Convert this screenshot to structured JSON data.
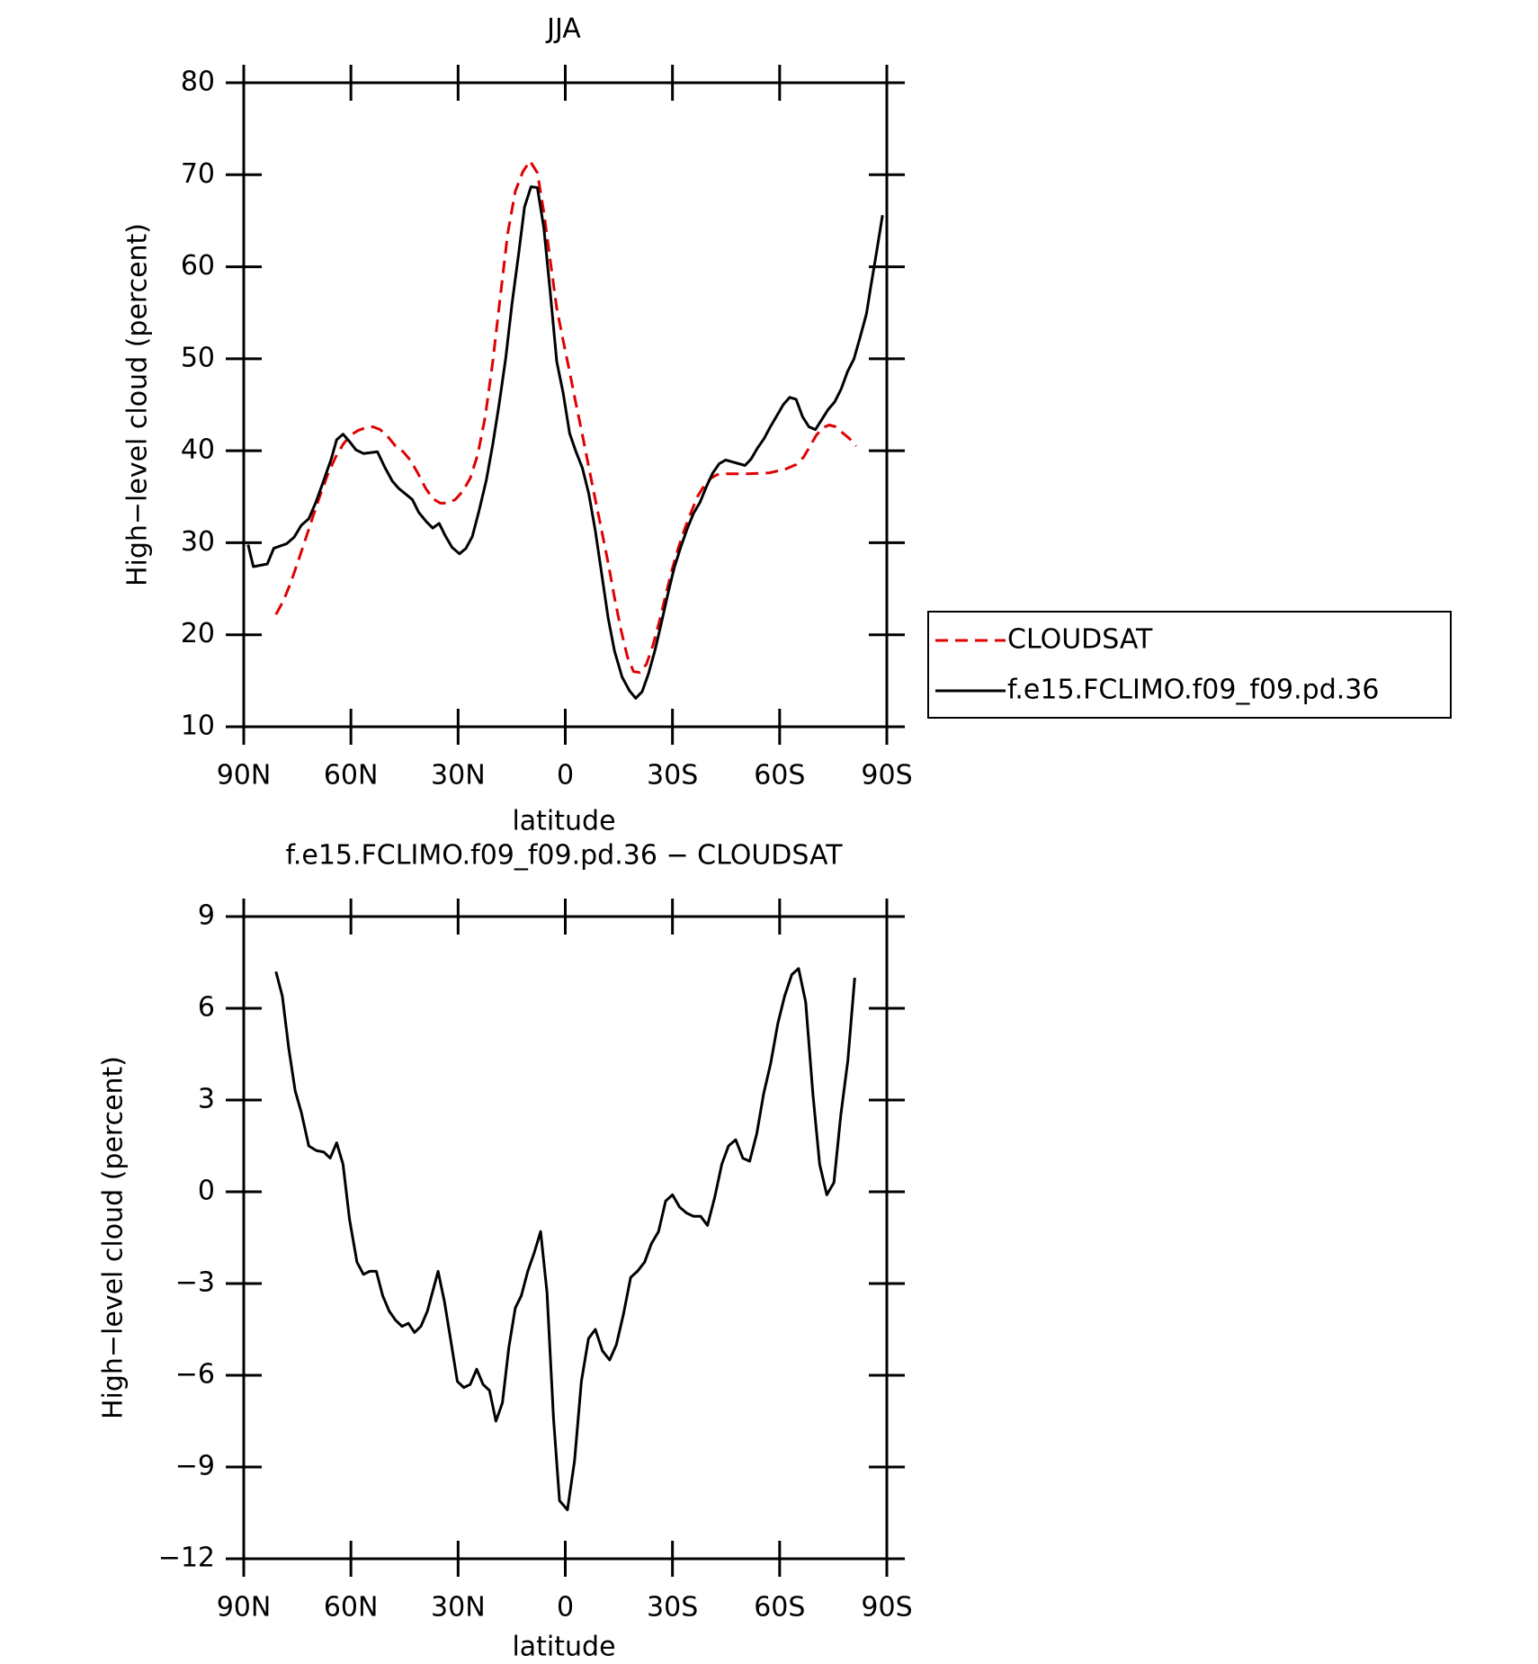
{
  "chart_data": [
    {
      "type": "line",
      "title": "JJA",
      "xlabel": "latitude",
      "ylabel": "High−level cloud (percent)",
      "xlim": [
        90,
        -90
      ],
      "xticks": [
        {
          "value": 90,
          "label": "90N"
        },
        {
          "value": 60,
          "label": "60N"
        },
        {
          "value": 30,
          "label": "30N"
        },
        0,
        {
          "value": -30,
          "label": "30S"
        },
        {
          "value": -60,
          "label": "60S"
        },
        {
          "value": -90,
          "label": "90S"
        }
      ],
      "ylim": [
        10,
        80
      ],
      "yticks": [
        10,
        20,
        30,
        40,
        50,
        60,
        70,
        80
      ],
      "legend": "right",
      "series": [
        {
          "name": "CLOUDSAT",
          "color": "#e00000",
          "line_style": "dashed",
          "x": [
            81.0,
            78.9,
            76.8,
            74.7,
            72.7,
            70.6,
            68.5,
            66.4,
            64.3,
            62.2,
            60.1,
            58.0,
            55.9,
            53.8,
            51.8,
            49.6,
            47.5,
            45.4,
            43.4,
            41.3,
            39.2,
            37.1,
            35.0,
            32.9,
            30.8,
            28.7,
            26.6,
            24.5,
            22.4,
            20.3,
            18.2,
            16.1,
            14.0,
            11.9,
            9.9,
            7.8,
            6.0,
            4.2,
            2.4,
            0.6,
            -1.2,
            -3.0,
            -4.8,
            -6.6,
            -8.4,
            -10.2,
            -12.0,
            -13.8,
            -15.6,
            -17.4,
            -19.1,
            -20.9,
            -22.7,
            -24.5,
            -26.3,
            -28.1,
            -29.9,
            -31.7,
            -33.5,
            -35.3,
            -37.1,
            -38.9,
            -40.7,
            -42.5,
            -45.2,
            -51.1,
            -57.1,
            -61.6,
            -64.6,
            -66.7,
            -68.5,
            -70.3,
            -72.1,
            -73.9,
            -75.7,
            -77.5,
            -79.6,
            -81.4
          ],
          "values": [
            22.2,
            23.7,
            25.7,
            28.1,
            30.4,
            32.9,
            35.3,
            37.5,
            39.3,
            40.7,
            41.7,
            42.2,
            42.5,
            42.6,
            42.3,
            41.5,
            40.5,
            39.9,
            39.0,
            37.6,
            36.0,
            34.8,
            34.3,
            34.3,
            34.7,
            35.6,
            37.0,
            39.6,
            43.7,
            49.7,
            56.7,
            63.6,
            68.2,
            70.3,
            71.5,
            70.2,
            65.9,
            60.7,
            55.5,
            52.0,
            48.6,
            45.1,
            41.7,
            38.2,
            34.7,
            31.3,
            27.8,
            24.0,
            20.5,
            17.6,
            16.0,
            15.9,
            16.8,
            18.8,
            21.4,
            24.3,
            27.1,
            29.5,
            31.6,
            33.4,
            35.1,
            36.2,
            37.0,
            37.4,
            37.5,
            37.5,
            37.6,
            38.0,
            38.5,
            39.3,
            40.5,
            41.7,
            42.5,
            42.8,
            42.6,
            42.0,
            41.3,
            40.5
          ]
        },
        {
          "name": "f.e15.FCLIMO.f09_f09.pd.36",
          "color": "#000000",
          "line_style": "solid",
          "x": [
            88.8,
            87.3,
            83.4,
            81.6,
            78.0,
            75.9,
            73.9,
            71.8,
            69.7,
            67.6,
            65.5,
            64.0,
            62.2,
            60.4,
            58.6,
            56.5,
            52.6,
            50.5,
            48.4,
            46.6,
            42.8,
            41.0,
            38.9,
            37.1,
            35.3,
            33.5,
            31.7,
            29.6,
            27.8,
            26.0,
            24.2,
            22.1,
            20.3,
            18.5,
            16.7,
            14.9,
            13.1,
            11.4,
            9.6,
            7.8,
            6.0,
            4.2,
            2.4,
            0.6,
            -1.2,
            -3.0,
            -4.8,
            -6.6,
            -8.4,
            -10.2,
            -12.0,
            -13.8,
            -15.9,
            -18.0,
            -19.7,
            -21.5,
            -23.3,
            -25.1,
            -26.9,
            -28.7,
            -30.5,
            -32.3,
            -34.1,
            -35.9,
            -37.7,
            -39.5,
            -41.3,
            -43.1,
            -44.9,
            -46.7,
            -50.3,
            -52.0,
            -53.8,
            -55.6,
            -57.4,
            -59.2,
            -61.0,
            -62.8,
            -64.6,
            -66.4,
            -68.2,
            -70.0,
            -71.8,
            -73.6,
            -75.4,
            -77.2,
            -79.0,
            -80.8,
            -82.5,
            -84.3,
            -85.5,
            -87.0,
            -88.8
          ],
          "values": [
            29.8,
            27.4,
            27.7,
            29.4,
            29.9,
            30.6,
            31.9,
            32.6,
            34.5,
            36.8,
            39.1,
            41.2,
            41.8,
            41.0,
            40.1,
            39.7,
            39.9,
            38.2,
            36.7,
            35.9,
            34.7,
            33.3,
            32.3,
            31.6,
            32.1,
            30.7,
            29.5,
            28.8,
            29.4,
            30.7,
            33.4,
            36.8,
            40.7,
            45.1,
            50.0,
            56.0,
            61.3,
            66.5,
            68.7,
            68.6,
            64.2,
            57.2,
            49.7,
            46.3,
            41.9,
            39.9,
            38.1,
            35.3,
            31.3,
            26.6,
            21.8,
            18.2,
            15.4,
            13.9,
            13.1,
            13.8,
            15.8,
            18.3,
            21.3,
            24.4,
            27.3,
            29.5,
            31.5,
            33.2,
            34.4,
            36.1,
            37.6,
            38.6,
            39.0,
            38.8,
            38.4,
            39.1,
            40.3,
            41.3,
            42.6,
            43.8,
            45.0,
            45.8,
            45.6,
            43.7,
            42.6,
            42.3,
            43.4,
            44.5,
            45.3,
            46.7,
            48.6,
            50.0,
            52.3,
            54.9,
            57.8,
            61.3,
            65.6
          ]
        }
      ]
    },
    {
      "type": "line",
      "title": "f.e15.FCLIMO.f09_f09.pd.36 − CLOUDSAT",
      "xlabel": "latitude",
      "ylabel": "High−level cloud (percent)",
      "xlim": [
        90,
        -90
      ],
      "xticks": [
        {
          "value": 90,
          "label": "90N"
        },
        {
          "value": 60,
          "label": "60N"
        },
        {
          "value": 30,
          "label": "30N"
        },
        0,
        {
          "value": -30,
          "label": "30S"
        },
        {
          "value": -60,
          "label": "60S"
        },
        {
          "value": -90,
          "label": "90S"
        }
      ],
      "ylim": [
        -12,
        9
      ],
      "yticks": [
        {
          "value": -12,
          "label": "−12"
        },
        {
          "value": -9,
          "label": "−9"
        },
        {
          "value": -6,
          "label": "−6"
        },
        {
          "value": -3,
          "label": "−3"
        },
        0,
        3,
        6,
        9
      ],
      "series": [
        {
          "color": "#000000",
          "line_style": "solid",
          "x": [
            81.0,
            79.2,
            77.4,
            75.6,
            73.9,
            71.8,
            69.7,
            67.6,
            65.8,
            64.0,
            62.2,
            60.4,
            58.3,
            56.5,
            54.7,
            52.9,
            51.1,
            49.3,
            47.5,
            45.7,
            43.9,
            42.2,
            40.4,
            38.6,
            35.6,
            33.8,
            32.0,
            30.2,
            28.4,
            26.6,
            24.8,
            23.0,
            21.2,
            19.4,
            17.6,
            15.8,
            14.0,
            12.3,
            10.5,
            8.7,
            6.9,
            5.1,
            3.3,
            1.6,
            -0.6,
            -2.6,
            -4.5,
            -6.5,
            -8.4,
            -10.4,
            -12.4,
            -14.3,
            -16.3,
            -18.3,
            -20.2,
            -22.2,
            -24.1,
            -26.1,
            -28.1,
            -30.0,
            -32.0,
            -34.0,
            -35.9,
            -37.9,
            -39.8,
            -41.8,
            -43.8,
            -45.7,
            -47.7,
            -49.7,
            -51.6,
            -53.6,
            -55.5,
            -57.5,
            -59.5,
            -61.4,
            -63.4,
            -65.3,
            -67.3,
            -69.3,
            -71.2,
            -73.2,
            -75.2,
            -77.1,
            -79.1,
            -81.0
          ],
          "values": [
            7.2,
            6.4,
            4.7,
            3.3,
            2.6,
            1.5,
            1.35,
            1.3,
            1.1,
            1.6,
            0.9,
            -0.9,
            -2.3,
            -2.7,
            -2.6,
            -2.6,
            -3.4,
            -3.9,
            -4.2,
            -4.4,
            -4.3,
            -4.6,
            -4.4,
            -3.9,
            -2.6,
            -3.6,
            -4.9,
            -6.2,
            -6.4,
            -6.3,
            -5.8,
            -6.3,
            -6.5,
            -7.5,
            -6.9,
            -5.1,
            -3.8,
            -3.4,
            -2.6,
            -2.0,
            -1.3,
            -3.3,
            -7.4,
            -10.1,
            -10.4,
            -8.8,
            -6.2,
            -4.8,
            -4.5,
            -5.2,
            -5.5,
            -5.0,
            -4.0,
            -2.8,
            -2.6,
            -2.3,
            -1.7,
            -1.3,
            -0.3,
            -0.1,
            -0.5,
            -0.7,
            -0.8,
            -0.8,
            -1.1,
            -0.2,
            0.9,
            1.5,
            1.7,
            1.1,
            1.0,
            1.9,
            3.2,
            4.2,
            5.5,
            6.4,
            7.1,
            7.3,
            6.2,
            3.2,
            0.9,
            -0.1,
            0.3,
            2.5,
            4.3,
            7.0
          ]
        }
      ]
    }
  ]
}
